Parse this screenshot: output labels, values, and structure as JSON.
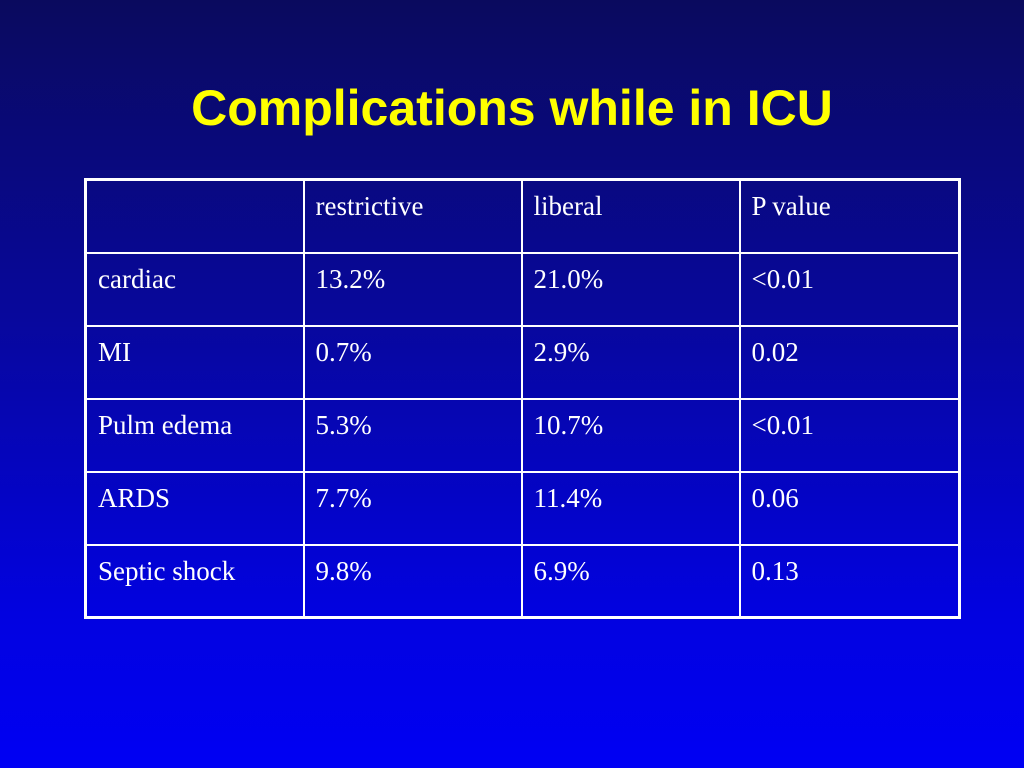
{
  "slide": {
    "title": "Complications while in ICU"
  },
  "table": {
    "header": [
      "",
      "restrictive",
      "liberal",
      "P value"
    ],
    "rows": [
      [
        "cardiac",
        "13.2%",
        "21.0%",
        "<0.01"
      ],
      [
        "MI",
        "0.7%",
        "2.9%",
        "0.02"
      ],
      [
        "Pulm edema",
        "5.3%",
        "10.7%",
        "<0.01"
      ],
      [
        "ARDS",
        "7.7%",
        "11.4%",
        "0.06"
      ],
      [
        "Septic shock",
        "9.8%",
        "6.9%",
        "0.13"
      ]
    ]
  },
  "colors": {
    "title": "#ffff00",
    "text": "#ffffff",
    "border": "#ffffff",
    "background_top": "#0a0a5e",
    "background_bottom": "#0000f4"
  }
}
